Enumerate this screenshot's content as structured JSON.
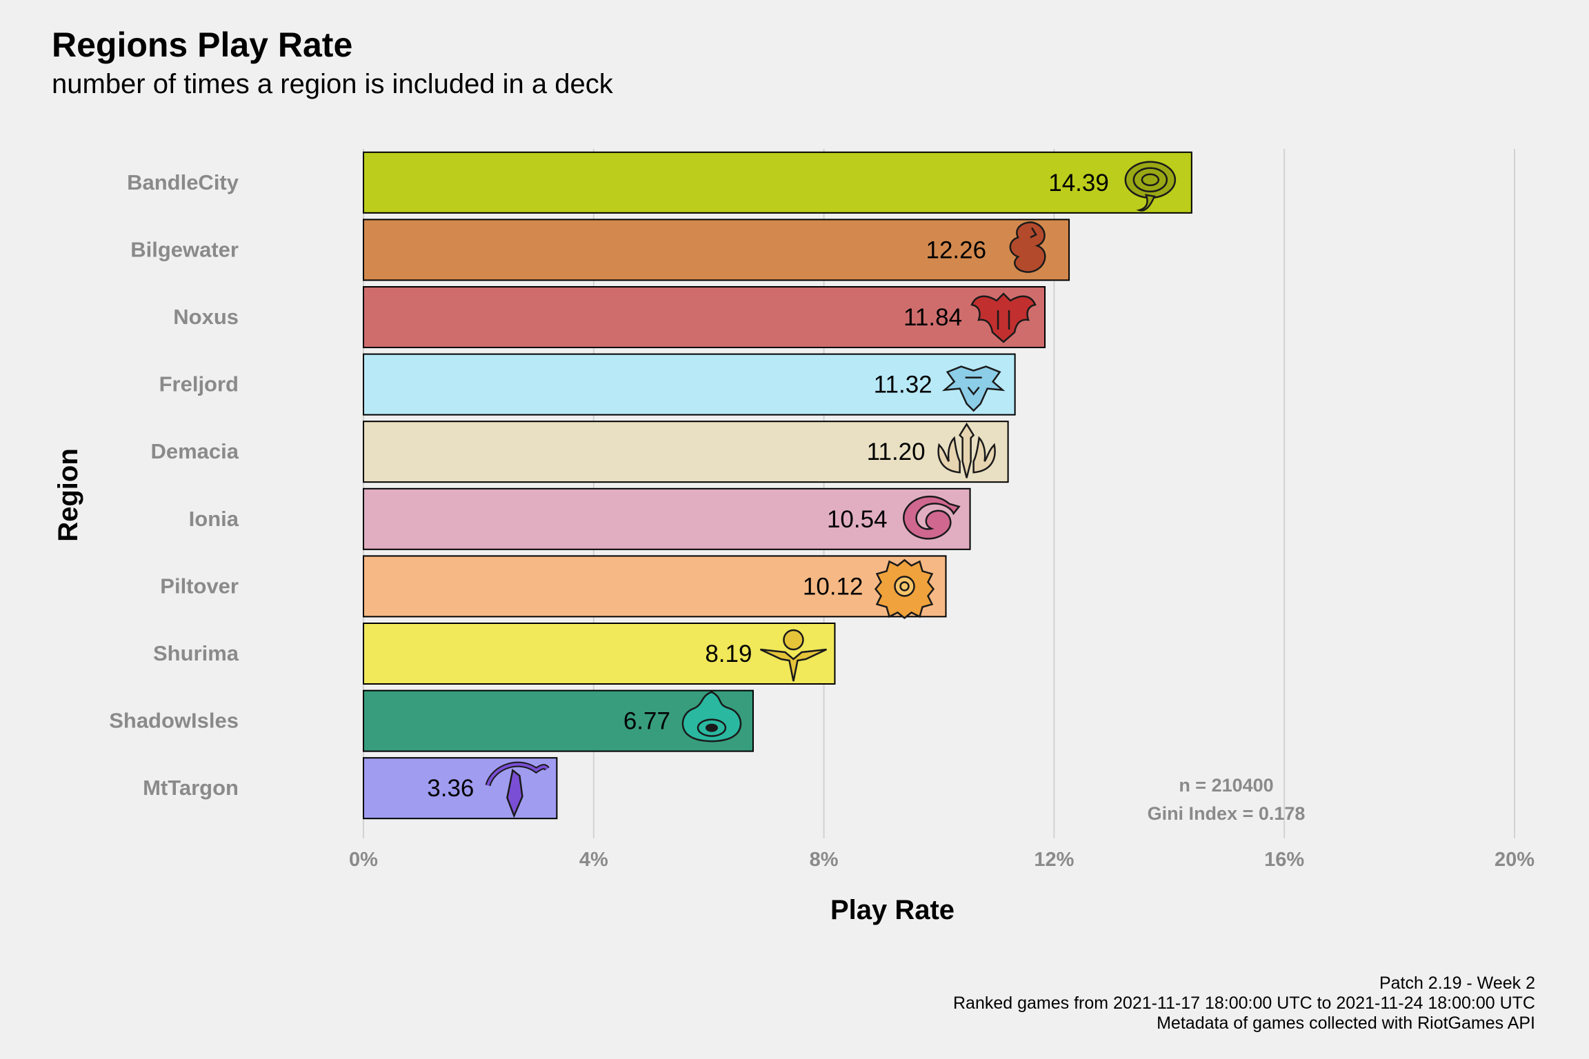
{
  "header": {
    "title": "Regions Play Rate",
    "subtitle": "number of times a region is included in a deck"
  },
  "chart_data": {
    "type": "bar",
    "orientation": "horizontal",
    "title": "Regions Play Rate",
    "subtitle": "number of times a region is included in a deck",
    "xlabel": "Play Rate",
    "ylabel": "Region",
    "xlim": [
      0,
      20
    ],
    "xticks": [
      0,
      4,
      8,
      12,
      16,
      20
    ],
    "xtick_labels": [
      "0%",
      "4%",
      "8%",
      "12%",
      "16%",
      "20%"
    ],
    "grid": "vertical major lines",
    "categories": [
      "BandleCity",
      "Bilgewater",
      "Noxus",
      "Freljord",
      "Demacia",
      "Ionia",
      "Piltover",
      "Shurima",
      "ShadowIsles",
      "MtTargon"
    ],
    "values": [
      14.39,
      12.26,
      11.84,
      11.32,
      11.2,
      10.54,
      10.12,
      8.19,
      6.77,
      3.36
    ],
    "value_labels": [
      "14.39",
      "12.26",
      "11.84",
      "11.32",
      "11.20",
      "10.54",
      "10.12",
      "8.19",
      "6.77",
      "3.36"
    ],
    "colors": [
      "#bccd1b",
      "#d3894e",
      "#cf6d6d",
      "#b8e9f7",
      "#e9dfc2",
      "#e1aec1",
      "#f6b985",
      "#f1e85a",
      "#379d7d",
      "#a09cf0"
    ],
    "icons": [
      "bandlecity-icon",
      "bilgewater-icon",
      "noxus-icon",
      "freljord-icon",
      "demacia-icon",
      "ionia-icon",
      "piltover-icon",
      "shurima-icon",
      "shadowisles-icon",
      "mttargon-icon"
    ],
    "icon_colors": [
      "#9aa814",
      "#b34a2c",
      "#c22f2f",
      "#8ccde8",
      "#e6d5b0",
      "#d0678f",
      "#f0a23c",
      "#e6c43a",
      "#2ab8a0",
      "#7a4fd6"
    ],
    "annotations": [
      "n = 210400",
      "Gini Index = 0.178"
    ]
  },
  "caption": {
    "line1": "Patch 2.19 - Week 2",
    "line2": "Ranked games from 2021-11-17 18:00:00 UTC to 2021-11-24 18:00:00 UTC",
    "line3": "Metadata of games collected with RiotGames API"
  }
}
